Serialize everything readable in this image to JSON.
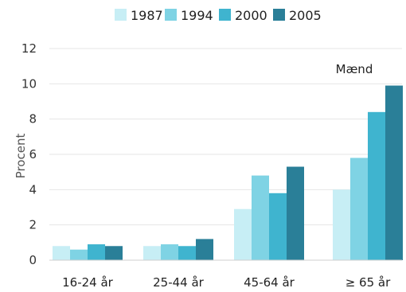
{
  "chart_data": {
    "type": "bar",
    "categories": [
      "16-24 år",
      "25-44 år",
      "45-64 år",
      "≥ 65 år"
    ],
    "series": [
      {
        "name": "1987",
        "color": "#c7eef5",
        "values": [
          0.8,
          0.8,
          2.9,
          4.0
        ]
      },
      {
        "name": "1994",
        "color": "#7fd3e4",
        "values": [
          0.6,
          0.9,
          4.8,
          5.8
        ]
      },
      {
        "name": "2000",
        "color": "#3fb4cf",
        "values": [
          0.9,
          0.8,
          3.8,
          8.4
        ]
      },
      {
        "name": "2005",
        "color": "#2a7f98",
        "values": [
          0.8,
          1.2,
          5.3,
          9.9
        ]
      }
    ],
    "title": "",
    "xlabel": "",
    "ylabel": "Procent",
    "ylim": [
      0,
      12
    ],
    "yticks": [
      "0",
      "2",
      "4",
      "6",
      "8",
      "10",
      "12"
    ],
    "grid": true,
    "legend_position": "top",
    "annotation": "Mænd"
  }
}
